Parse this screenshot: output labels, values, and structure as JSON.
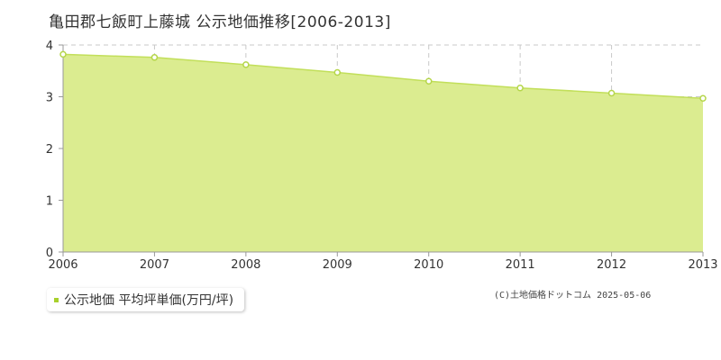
{
  "title": "亀田郡七飯町上藤城 公示地価推移[2006-2013]",
  "legend": {
    "label": "公示地価 平均坪単価(万円/坪)",
    "color": "#a8d02c"
  },
  "copyright": "(C)土地価格ドットコム 2025-05-06",
  "colors": {
    "area_fill": "#dbec90",
    "line": "#c2df5a",
    "point_fill": "#ffffff",
    "point_stroke": "#b5d64a"
  },
  "chart_data": {
    "type": "area",
    "x": [
      "2006",
      "2007",
      "2008",
      "2009",
      "2010",
      "2011",
      "2012",
      "2013"
    ],
    "series": [
      {
        "name": "公示地価 平均坪単価(万円/坪)",
        "values": [
          3.82,
          3.76,
          3.62,
          3.47,
          3.3,
          3.17,
          3.07,
          2.97
        ]
      }
    ],
    "ylim": [
      0,
      4
    ],
    "yticks": [
      "0",
      "1",
      "2",
      "3",
      "4"
    ],
    "grid": true,
    "legend_position": "bottom-left",
    "title": "亀田郡七飯町上藤城 公示地価推移[2006-2013]",
    "xlabel": "",
    "ylabel": ""
  }
}
